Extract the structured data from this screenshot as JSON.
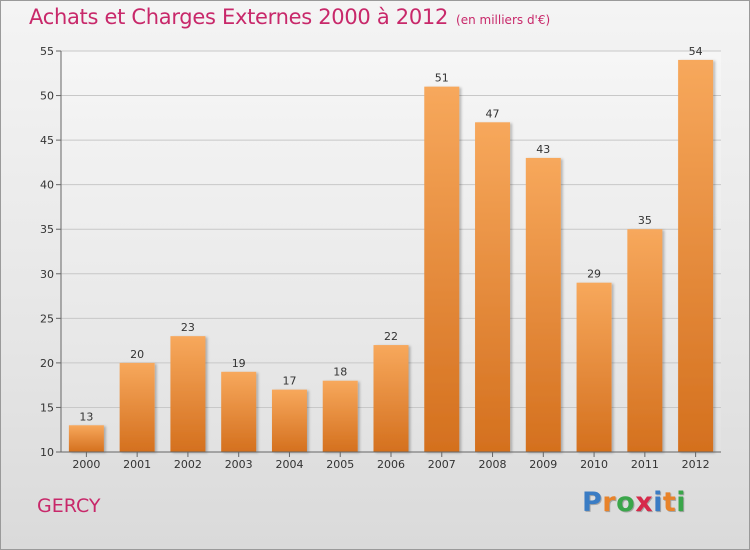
{
  "title": "Achats et Charges Externes 2000 à 2012",
  "unit_note": "(en milliers d'€)",
  "commune": "GERCY",
  "logo": {
    "text": "Proxiti",
    "letters": [
      "P",
      "r",
      "o",
      "x",
      "i",
      "t",
      "i"
    ],
    "colors": [
      "#3a7cc4",
      "#e8832a",
      "#3aa64a",
      "#d62a4a",
      "#3a7cc4",
      "#e8832a",
      "#3aa64a"
    ]
  },
  "colors": {
    "title": "#c8286a",
    "bar_top": "#f7a85c",
    "bar_bottom": "#d4701e",
    "grid": "#c8c8c8"
  },
  "chart_data": {
    "type": "bar",
    "title": "Achats et Charges Externes 2000 à 2012",
    "subtitle": "(en milliers d'€)",
    "xlabel": "",
    "ylabel": "",
    "categories": [
      "2000",
      "2001",
      "2002",
      "2003",
      "2004",
      "2005",
      "2006",
      "2007",
      "2008",
      "2009",
      "2010",
      "2011",
      "2012"
    ],
    "values": [
      13,
      20,
      23,
      19,
      17,
      18,
      22,
      51,
      47,
      43,
      29,
      35,
      54
    ],
    "ylim": [
      10,
      55
    ],
    "yticks": [
      10,
      15,
      20,
      25,
      30,
      35,
      40,
      45,
      50,
      55
    ],
    "grid": true,
    "data_labels": true
  }
}
